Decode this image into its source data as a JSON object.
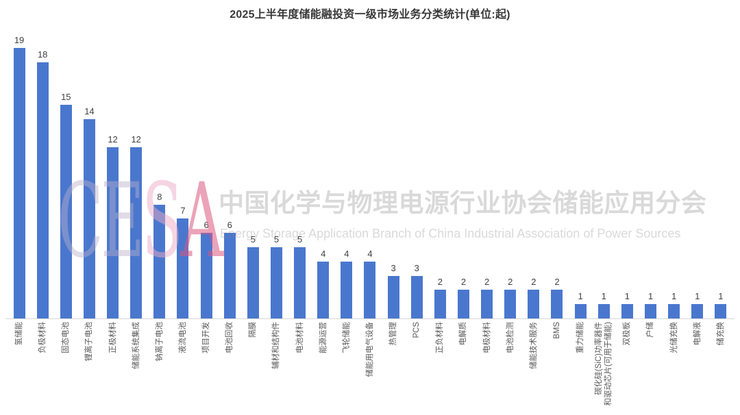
{
  "title": "2025上半年度储能融投资一级市场业务分类统计(单位:起)",
  "watermark": {
    "logo_letters": [
      "C",
      "E",
      "S",
      "A"
    ],
    "logo_letter_colors": [
      "rgba(185,175,202,0.45)",
      "rgba(185,175,202,0.45)",
      "rgba(236,172,198,0.50)",
      "rgba(219,88,128,0.55)"
    ],
    "cn_text": "中国化学与物理电源行业协会储能应用分会",
    "en_text": "Energy Storage Application Branch of China Industrial Association of Power Sources"
  },
  "chart_data": {
    "type": "bar",
    "title": "2025上半年度储能融投资一级市场业务分类统计(单位:起)",
    "unit": "起",
    "bar_color": "#4a77ce",
    "value_label_color": "#404040",
    "category_label_color": "#595959",
    "axis_line_color": "#d6d6d6",
    "ylim": [
      0,
      20
    ],
    "grid": false,
    "legend": false,
    "value_labels": "above-bars",
    "category_label_rotation_deg": 90,
    "categories": [
      "氢储能",
      "负极材料",
      "固态电池",
      "锂离子电池",
      "正极材料",
      "储能系统集成",
      "钠离子电池",
      "液流电池",
      "项目开发",
      "电池回收",
      "隔膜",
      "辅材和结构件",
      "电池材料",
      "能源运营",
      "飞轮储能",
      "储能用电气设备",
      "热管理",
      "PCS",
      "正负材料",
      "电解质",
      "电极材料",
      "电池检测",
      "储能技术服务",
      "BMS",
      "重力储能",
      "碳化硅(SiC)功率器件\n和驱动芯片(可用于储能)",
      "双极板",
      "户储",
      "光储充换",
      "电解液",
      "储充换"
    ],
    "values": [
      19,
      18,
      15,
      14,
      12,
      12,
      8,
      7,
      6,
      6,
      5,
      5,
      5,
      4,
      4,
      4,
      3,
      3,
      2,
      2,
      2,
      2,
      2,
      2,
      1,
      1,
      1,
      1,
      1,
      1,
      1
    ]
  }
}
